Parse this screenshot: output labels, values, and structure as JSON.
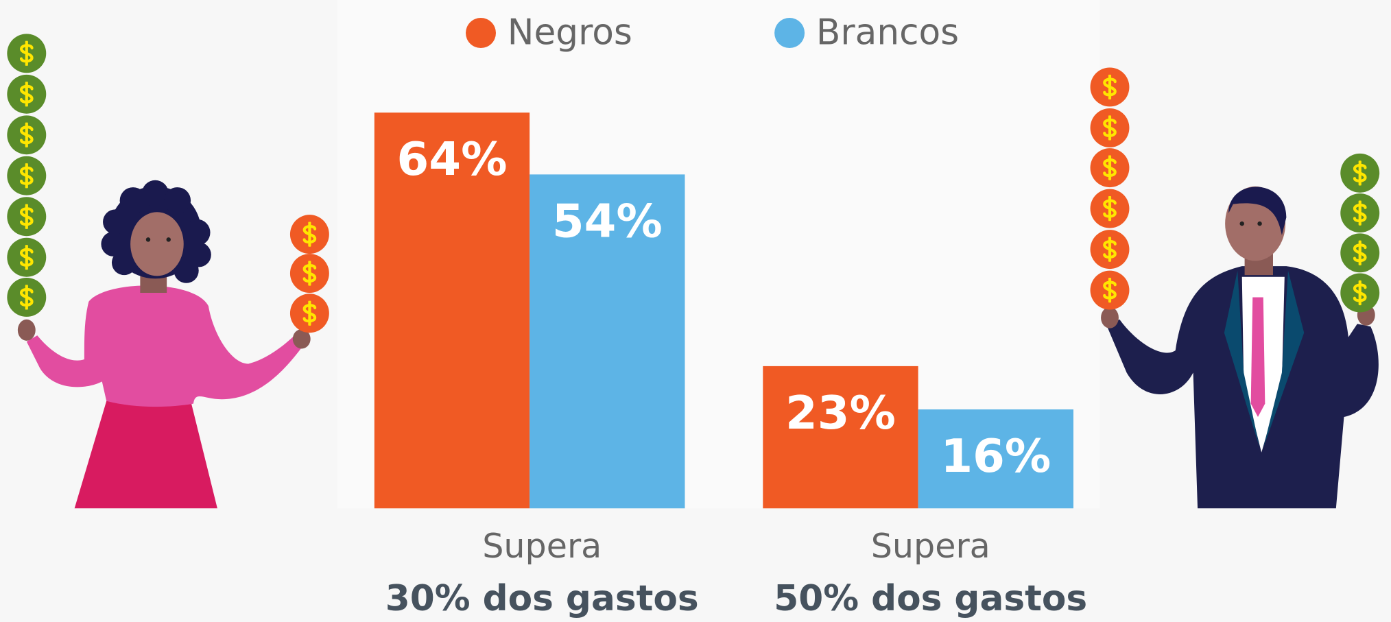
{
  "chart_data": {
    "type": "bar",
    "categories": [
      [
        "Supera",
        "30% dos gastos"
      ],
      [
        "Supera",
        "50% dos gastos"
      ]
    ],
    "series": [
      {
        "name": "Negros",
        "color": "#f05a24",
        "values": [
          64,
          23
        ],
        "value_labels": [
          "64%",
          "23%"
        ]
      },
      {
        "name": "Brancos",
        "color": "#5db4e6",
        "values": [
          54,
          16
        ],
        "value_labels": [
          "54%",
          "16%"
        ]
      }
    ],
    "ylim": [
      0,
      70
    ]
  }
}
